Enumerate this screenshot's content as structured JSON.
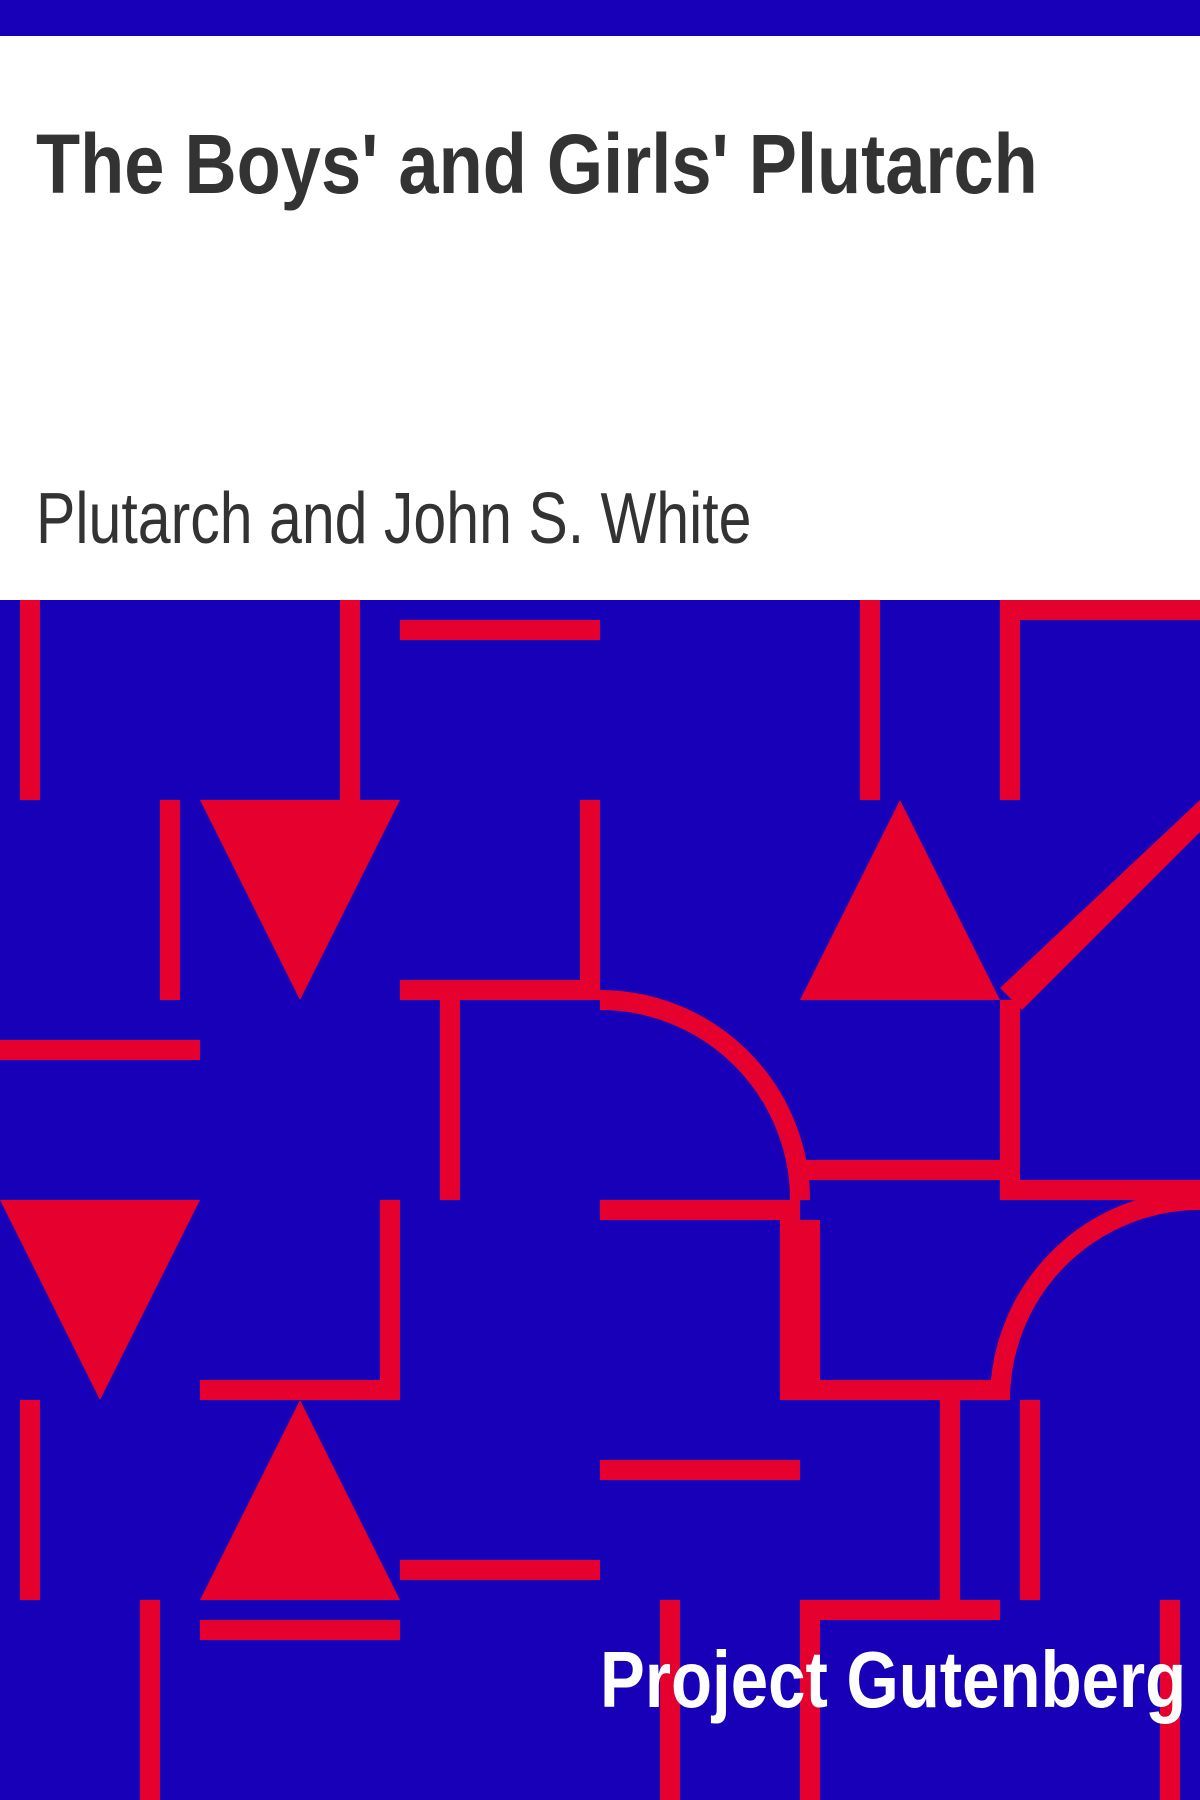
{
  "cover": {
    "title": "The Boys' and Girls' Plutarch",
    "author": "Plutarch and John S. White",
    "publisher": "Project Gutenberg"
  },
  "colors": {
    "background_blue": "#1700b8",
    "pattern_red": "#e5002e",
    "text_dark": "#333333",
    "text_light": "#ffffff"
  }
}
